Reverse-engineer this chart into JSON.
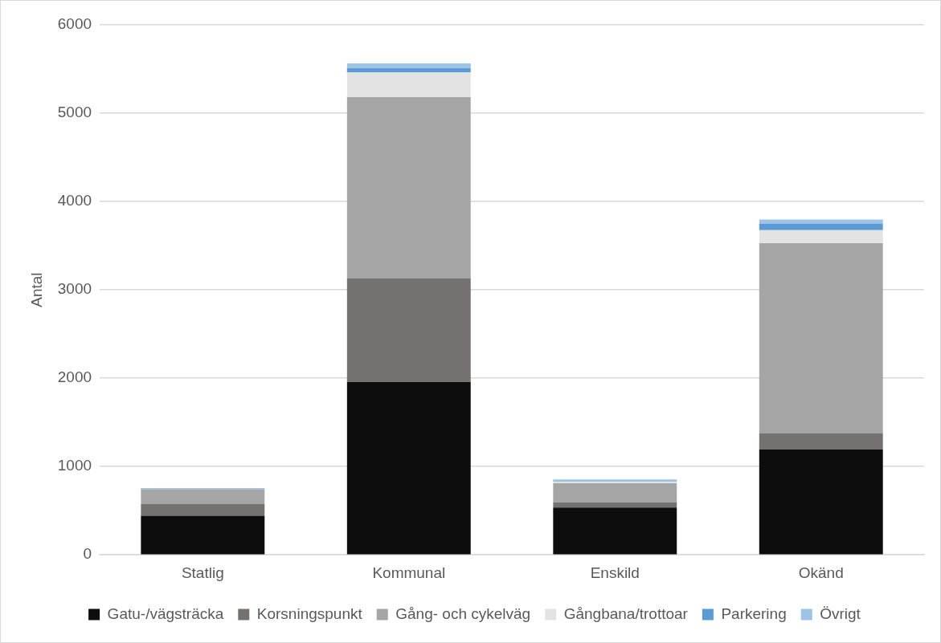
{
  "chart_data": {
    "type": "bar",
    "stacked": true,
    "ylabel": "Antal",
    "categories": [
      "Statlig",
      "Kommunal",
      "Enskild",
      "Okänd"
    ],
    "series": [
      {
        "name": "Gatu-/vägsträcka",
        "color": "#0d0d0d",
        "values": [
          443,
          1958,
          535,
          1195
        ]
      },
      {
        "name": "Korsningspunkt",
        "color": "#767171",
        "values": [
          132,
          1175,
          59,
          184
        ]
      },
      {
        "name": "Gång- och cykelväg",
        "color": "#a5a5a5",
        "values": [
          167,
          2049,
          217,
          2148
        ]
      },
      {
        "name": "Gångbana/trottoar",
        "color": "#e3e3e3",
        "values": [
          null,
          279,
          20,
          148
        ]
      },
      {
        "name": "Parkering",
        "color": "#5b9bd5",
        "values": [
          3,
          49,
          10,
          76
        ]
      },
      {
        "name": "Övrigt",
        "color": "#9dc3e6",
        "values": [
          12,
          53,
          12,
          45
        ]
      }
    ],
    "ylim": [
      0,
      6000
    ],
    "yticks": [
      0,
      1000,
      2000,
      3000,
      4000,
      5000,
      6000
    ],
    "grid": "y",
    "legend": "bottom"
  }
}
